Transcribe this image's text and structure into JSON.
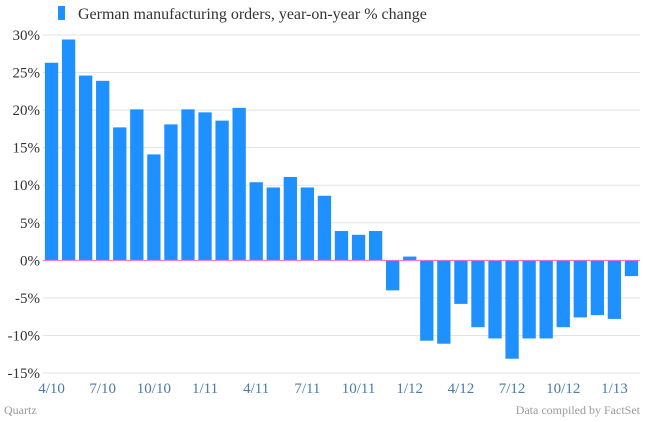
{
  "chart_data": {
    "type": "bar",
    "title": "",
    "series": [
      {
        "name": "German manufacturing orders, year-on-year % change",
        "color": "#1e90ff",
        "values": [
          26.3,
          29.4,
          24.6,
          23.9,
          17.7,
          20.1,
          14.1,
          18.1,
          20.1,
          19.7,
          18.6,
          20.3,
          10.4,
          9.7,
          11.1,
          9.7,
          8.6,
          3.9,
          3.4,
          3.9,
          -4.0,
          0.5,
          -10.7,
          -11.1,
          -5.8,
          -8.9,
          -10.4,
          -13.1,
          -10.4,
          -10.4,
          -8.9,
          -7.6,
          -7.3,
          -7.8,
          -2.1
        ]
      }
    ],
    "x_tick_labels": [
      "4/10",
      "7/10",
      "10/10",
      "1/11",
      "4/11",
      "7/11",
      "10/11",
      "1/12",
      "4/12",
      "7/12",
      "10/12",
      "1/13"
    ],
    "x_tick_every": 3,
    "y_ticks": [
      30,
      25,
      20,
      15,
      10,
      5,
      0,
      -5,
      -10,
      -15
    ],
    "y_tick_labels": [
      "30%",
      "25%",
      "20%",
      "15%",
      "10%",
      "5%",
      "0%",
      "-5%",
      "-10%",
      "-15%"
    ],
    "ylim": [
      -15,
      30
    ],
    "xlabel": "",
    "ylabel": "",
    "grid": true,
    "legend_position": "top-left",
    "zero_line_color": "#ff66cc",
    "grid_color": "#e3e3e3"
  },
  "footer": {
    "source_left": "Quartz",
    "source_right": "Data compiled by FactSet"
  }
}
